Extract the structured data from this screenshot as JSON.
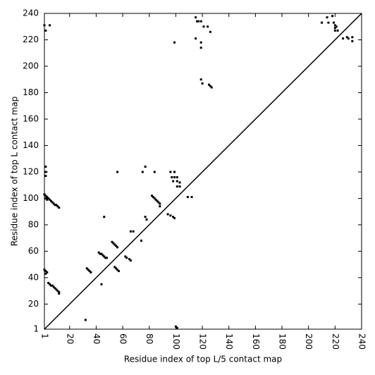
{
  "chart_data": {
    "type": "scatter",
    "x_label": "Residue index of top L/5 contact map",
    "y_label": "Residue index of top L contact map",
    "color": "#000000",
    "xlim": [
      1,
      240
    ],
    "ylim": [
      1,
      240
    ],
    "xticks": [
      1,
      20,
      40,
      60,
      80,
      100,
      120,
      140,
      160,
      180,
      200,
      220,
      240
    ],
    "yticks": [
      1,
      20,
      40,
      60,
      80,
      100,
      120,
      140,
      160,
      180,
      200,
      220,
      240
    ],
    "x": [
      1,
      2,
      3,
      4,
      5,
      6,
      7,
      8,
      9,
      10,
      11,
      12,
      2,
      3,
      1,
      2,
      3,
      2,
      4,
      5,
      6,
      7,
      8,
      9,
      10,
      11,
      12,
      12,
      2,
      2,
      2,
      1,
      2,
      5,
      32,
      33,
      34,
      35,
      36,
      42,
      43,
      44,
      45,
      46,
      47,
      48,
      44,
      46,
      52,
      53,
      54,
      55,
      56,
      54,
      55,
      56,
      57,
      56,
      62,
      63,
      65,
      66,
      66,
      68,
      74,
      75,
      77,
      77,
      78,
      82,
      83,
      84,
      85,
      86,
      87,
      88,
      88,
      84,
      94,
      96,
      98,
      99,
      96,
      99,
      97,
      99,
      101,
      98,
      101,
      103,
      101,
      103,
      99,
      109,
      112,
      100,
      101,
      115,
      116,
      117,
      115,
      119,
      119,
      119,
      121,
      124,
      126,
      119,
      120,
      125,
      126,
      127,
      210,
      214,
      215,
      218,
      219,
      220,
      221,
      220,
      222,
      226,
      229,
      230,
      233,
      233,
      220
    ],
    "y": [
      103,
      102,
      101,
      100,
      99,
      98,
      97,
      96,
      95,
      95,
      94,
      93,
      100,
      99,
      46,
      45,
      44,
      43,
      36,
      35,
      34,
      34,
      33,
      32,
      31,
      30,
      29,
      28,
      124,
      120,
      117,
      231,
      227,
      231,
      8,
      47,
      46,
      45,
      44,
      59,
      58,
      58,
      57,
      56,
      55,
      55,
      35,
      86,
      67,
      66,
      65,
      64,
      63,
      48,
      47,
      46,
      45,
      120,
      56,
      55,
      54,
      53,
      75,
      75,
      68,
      120,
      124,
      86,
      84,
      102,
      101,
      100,
      99,
      98,
      97,
      96,
      94,
      120,
      88,
      87,
      86,
      85,
      120,
      120,
      116,
      116,
      116,
      113,
      113,
      112,
      109,
      109,
      218,
      101,
      101,
      3,
      2,
      237,
      234,
      234,
      221,
      234,
      218,
      214,
      230,
      230,
      226,
      190,
      187,
      186,
      185,
      184,
      233,
      237,
      233,
      238,
      233,
      229,
      230,
      227,
      227,
      221,
      222,
      221,
      219,
      222,
      231
    ]
  }
}
